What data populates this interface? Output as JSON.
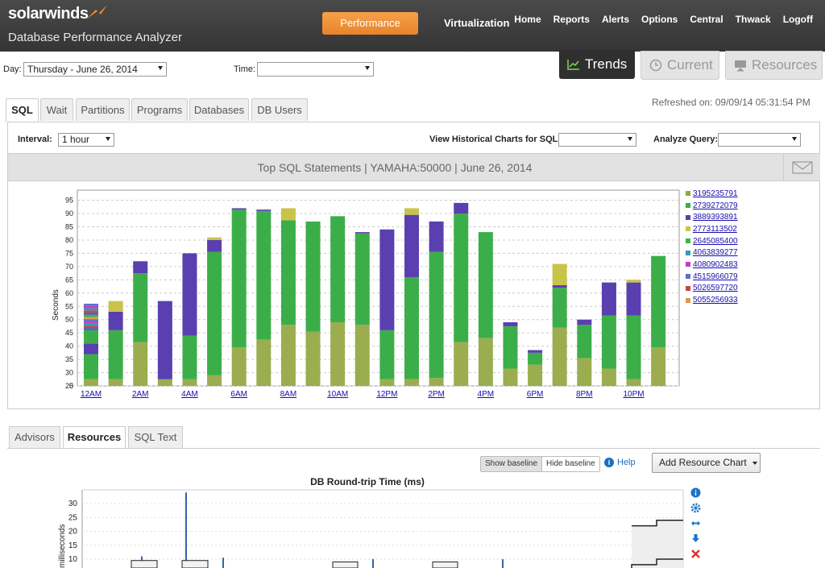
{
  "header": {
    "brand": "solarwinds",
    "product": "Database Performance Analyzer",
    "performance_btn": "Performance",
    "virtualization_btn": "Virtualization",
    "nav": [
      "Home",
      "Reports",
      "Alerts",
      "Options",
      "Central",
      "Thwack",
      "Logoff"
    ]
  },
  "filters": {
    "day_label": "Day:",
    "day_value": "Thursday - June 26, 2014",
    "time_label": "Time:",
    "time_value": ""
  },
  "views": {
    "trends": "Trends",
    "current": "Current",
    "resources": "Resources"
  },
  "tabs": [
    "SQL",
    "Wait",
    "Partitions",
    "Programs",
    "Databases",
    "DB Users"
  ],
  "refreshed": "Refreshed on: 09/09/14 05:31:54 PM",
  "controls": {
    "interval_label": "Interval:",
    "interval_value": "1 hour",
    "historical_label": "View Historical Charts for SQL:",
    "historical_value": "",
    "analyze_label": "Analyze Query:",
    "analyze_value": ""
  },
  "chart_title": "Top SQL Statements | YAMAHA:50000 | June 26, 2014",
  "chart_data": {
    "type": "bar",
    "stacked": true,
    "ylabel": "Seconds",
    "ylim": [
      0,
      97
    ],
    "y_ticks": [
      0,
      25,
      30,
      35,
      40,
      45,
      50,
      55,
      60,
      65,
      70,
      75,
      80,
      85,
      90,
      95
    ],
    "x_tick_labels": [
      "12AM",
      "2AM",
      "4AM",
      "6AM",
      "8AM",
      "10AM",
      "12PM",
      "2PM",
      "4PM",
      "6PM",
      "8PM",
      "10PM"
    ],
    "categories": [
      "0",
      "1",
      "2",
      "3",
      "4",
      "5",
      "6",
      "7",
      "8",
      "9",
      "10",
      "11",
      "12",
      "13",
      "14",
      "15",
      "16",
      "17",
      "18",
      "19",
      "20",
      "21",
      "22",
      "23"
    ],
    "legend": [
      "3195235791",
      "2739272079",
      "3889393891",
      "2773113502",
      "2645085400",
      "4063839277",
      "4080902483",
      "4515966079",
      "5026597720",
      "5055256933"
    ],
    "legend_colors": [
      "#8faa3e",
      "#3cae49",
      "#5a3fb1",
      "#c8c44a",
      "#3cb44a",
      "#2e9bb3",
      "#c23fc2",
      "#5d6fd0",
      "#c8424f",
      "#d99a4e"
    ],
    "bars": [
      {
        "h": 0,
        "segs": [
          [
            25,
            27.5,
            "#9bad4f"
          ],
          [
            27.5,
            37,
            "#3cae49"
          ],
          [
            37,
            41,
            "#5a3fb1"
          ],
          [
            41,
            46,
            "#3cae49"
          ],
          [
            46,
            56,
            "multi"
          ]
        ]
      },
      {
        "h": 1,
        "segs": [
          [
            25,
            27.5,
            "#9bad4f"
          ],
          [
            27.5,
            46,
            "#3cae49"
          ],
          [
            46,
            53,
            "#5a3fb1"
          ],
          [
            53,
            57,
            "#c8c44a"
          ]
        ]
      },
      {
        "h": 2,
        "segs": [
          [
            25,
            41.5,
            "#9bad4f"
          ],
          [
            41.5,
            67.5,
            "#3cae49"
          ],
          [
            67.5,
            72,
            "#5a3fb1"
          ]
        ]
      },
      {
        "h": 3,
        "segs": [
          [
            25,
            27.5,
            "#9bad4f"
          ],
          [
            27.5,
            57,
            "#5a3fb1"
          ]
        ]
      },
      {
        "h": 4,
        "segs": [
          [
            25,
            27.5,
            "#9bad4f"
          ],
          [
            27.5,
            44,
            "#3cae49"
          ],
          [
            44,
            75,
            "#5a3fb1"
          ]
        ]
      },
      {
        "h": 5,
        "segs": [
          [
            25,
            29,
            "#9bad4f"
          ],
          [
            29,
            75.5,
            "#3cae49"
          ],
          [
            75.5,
            80,
            "#5a3fb1"
          ],
          [
            80,
            81,
            "#c8c44a"
          ]
        ]
      },
      {
        "h": 6,
        "segs": [
          [
            25,
            39.5,
            "#9bad4f"
          ],
          [
            39.5,
            91.5,
            "#3cae49"
          ],
          [
            91.5,
            92,
            "#5a3fb1"
          ]
        ]
      },
      {
        "h": 7,
        "segs": [
          [
            25,
            42.5,
            "#9bad4f"
          ],
          [
            42.5,
            91,
            "#3cae49"
          ],
          [
            91,
            91.5,
            "#5a3fb1"
          ]
        ]
      },
      {
        "h": 8,
        "segs": [
          [
            25,
            48,
            "#9bad4f"
          ],
          [
            48,
            87.5,
            "#3cae49"
          ],
          [
            87.5,
            92,
            "#c8c44a"
          ]
        ]
      },
      {
        "h": 9,
        "segs": [
          [
            25,
            45.5,
            "#9bad4f"
          ],
          [
            45.5,
            87,
            "#3cae49"
          ]
        ]
      },
      {
        "h": 10,
        "segs": [
          [
            25,
            49,
            "#9bad4f"
          ],
          [
            49,
            89,
            "#3cae49"
          ]
        ]
      },
      {
        "h": 11,
        "segs": [
          [
            25,
            48,
            "#9bad4f"
          ],
          [
            48,
            82.5,
            "#3cae49"
          ],
          [
            82.5,
            83,
            "#5a3fb1"
          ]
        ]
      },
      {
        "h": 12,
        "segs": [
          [
            25,
            27.5,
            "#9bad4f"
          ],
          [
            27.5,
            46,
            "#3cae49"
          ],
          [
            46,
            84,
            "#5a3fb1"
          ]
        ]
      },
      {
        "h": 13,
        "segs": [
          [
            25,
            27.5,
            "#9bad4f"
          ],
          [
            27.5,
            66,
            "#3cae49"
          ],
          [
            66,
            89.5,
            "#5a3fb1"
          ],
          [
            89.5,
            92,
            "#c8c44a"
          ]
        ]
      },
      {
        "h": 14,
        "segs": [
          [
            25,
            28,
            "#9bad4f"
          ],
          [
            28,
            75.5,
            "#3cae49"
          ],
          [
            75.5,
            87,
            "#5a3fb1"
          ]
        ]
      },
      {
        "h": 15,
        "segs": [
          [
            25,
            41.5,
            "#9bad4f"
          ],
          [
            41.5,
            90,
            "#3cae49"
          ],
          [
            90,
            94,
            "#5a3fb1"
          ]
        ]
      },
      {
        "h": 16,
        "segs": [
          [
            25,
            43,
            "#9bad4f"
          ],
          [
            43,
            83,
            "#3cae49"
          ]
        ]
      },
      {
        "h": 17,
        "segs": [
          [
            25,
            31.5,
            "#9bad4f"
          ],
          [
            31.5,
            47.5,
            "#3cae49"
          ],
          [
            47.5,
            49,
            "#5a3fb1"
          ]
        ]
      },
      {
        "h": 18,
        "segs": [
          [
            25,
            33,
            "#9bad4f"
          ],
          [
            33,
            37.5,
            "#3cae49"
          ],
          [
            37.5,
            38.5,
            "#5a3fb1"
          ]
        ]
      },
      {
        "h": 19,
        "segs": [
          [
            25,
            47,
            "#9bad4f"
          ],
          [
            47,
            62,
            "#3cae49"
          ],
          [
            62,
            63,
            "#5a3fb1"
          ],
          [
            63,
            71,
            "#c8c44a"
          ]
        ]
      },
      {
        "h": 20,
        "segs": [
          [
            25,
            35.5,
            "#9bad4f"
          ],
          [
            35.5,
            48,
            "#3cae49"
          ],
          [
            48,
            50,
            "#5a3fb1"
          ]
        ]
      },
      {
        "h": 21,
        "segs": [
          [
            25,
            31.5,
            "#9bad4f"
          ],
          [
            31.5,
            51.5,
            "#3cae49"
          ],
          [
            51.5,
            64,
            "#5a3fb1"
          ]
        ]
      },
      {
        "h": 22,
        "segs": [
          [
            25,
            27.5,
            "#9bad4f"
          ],
          [
            27.5,
            51.5,
            "#3cae49"
          ],
          [
            51.5,
            64,
            "#5a3fb1"
          ],
          [
            64,
            65,
            "#c8c44a"
          ]
        ]
      },
      {
        "h": 23,
        "segs": [
          [
            25,
            39.5,
            "#9bad4f"
          ],
          [
            39.5,
            74,
            "#3cae49"
          ]
        ]
      }
    ]
  },
  "bottom_tabs": [
    "Advisors",
    "Resources",
    "SQL Text"
  ],
  "baseline": {
    "show": "Show baseline",
    "hide": "Hide baseline"
  },
  "help": "Help",
  "add_chart": "Add Resource Chart",
  "rt_chart": {
    "title": "DB Round-trip Time (ms)",
    "ylabel": "milliseconds",
    "y_ticks": [
      10,
      15,
      20,
      25,
      30
    ]
  },
  "side_icons": [
    "info-icon",
    "gear-icon",
    "resize-icon",
    "download-icon",
    "close-icon"
  ]
}
